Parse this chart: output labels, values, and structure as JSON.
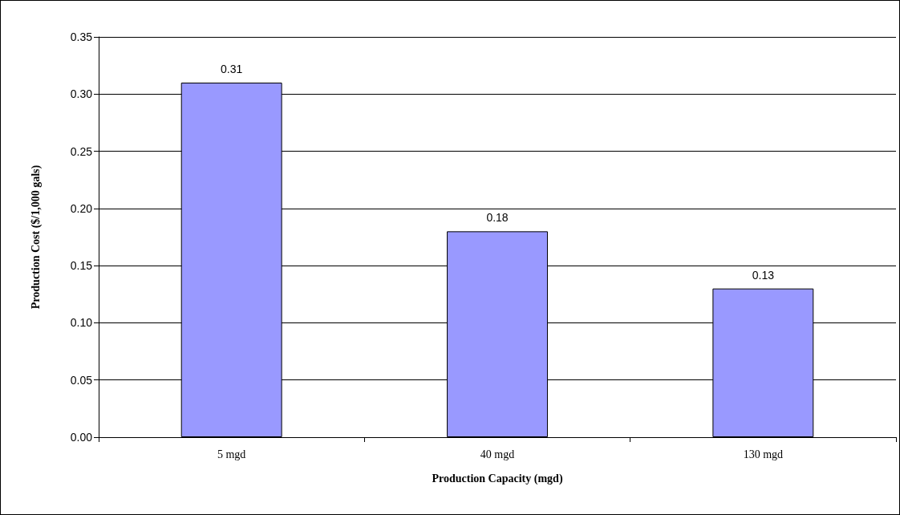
{
  "chart_data": {
    "type": "bar",
    "xlabel": "Production Capacity (mgd)",
    "ylabel": "Production Cost ($/1,000 gals)",
    "categories": [
      "5 mgd",
      "40 mgd",
      "130 mgd"
    ],
    "values": [
      0.31,
      0.18,
      0.13
    ],
    "color": "#9999ff",
    "data_labels": true,
    "ylim": [
      0,
      0.35
    ],
    "yticks": [
      {
        "value": 0,
        "label": "0.00"
      },
      {
        "value": 0.05,
        "label": "0.05"
      },
      {
        "value": 0.1,
        "label": "0.10"
      },
      {
        "value": 0.15,
        "label": "0.15"
      },
      {
        "value": 0.2,
        "label": "0.20"
      },
      {
        "value": 0.25,
        "label": "0.25"
      },
      {
        "value": 0.3,
        "label": "0.30"
      },
      {
        "value": 0.35,
        "label": "0.35"
      }
    ],
    "grid": "y"
  }
}
